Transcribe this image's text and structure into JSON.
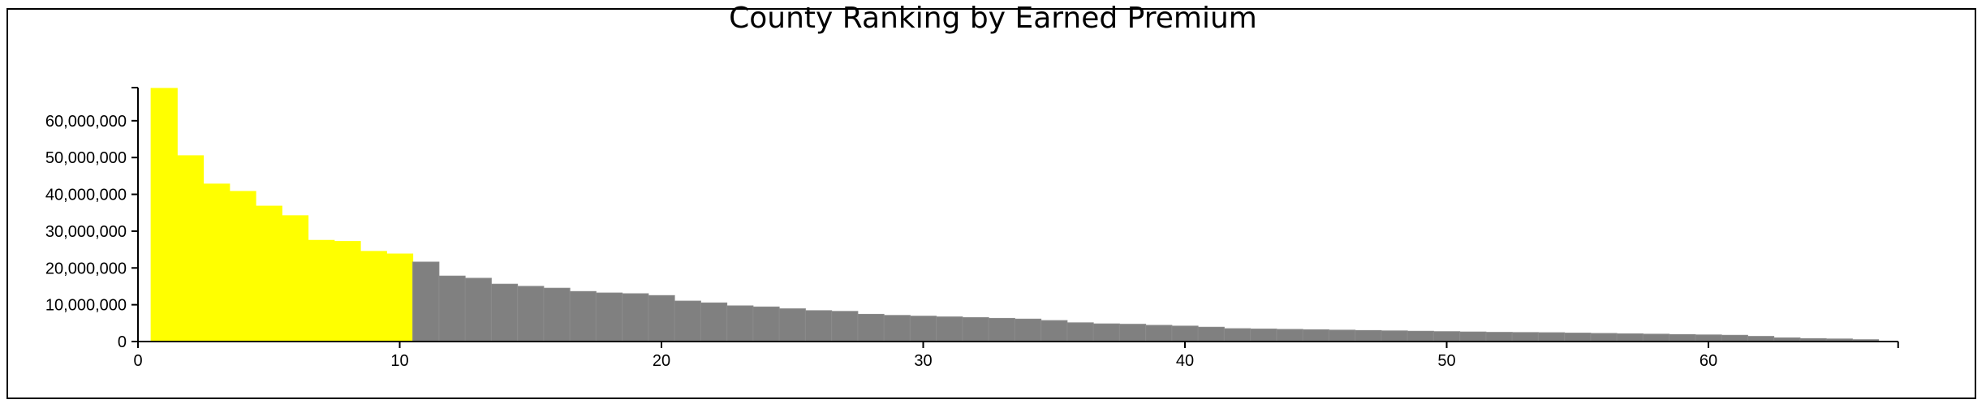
{
  "chart_data": {
    "type": "bar",
    "title": "County Ranking by Earned Premium",
    "xlabel": "",
    "ylabel": "",
    "xlim": [
      0,
      67
    ],
    "ylim": [
      0,
      69000000
    ],
    "x_ticks": [
      0,
      10,
      20,
      30,
      40,
      50,
      60
    ],
    "y_ticks": [
      0,
      10000000,
      20000000,
      30000000,
      40000000,
      50000000,
      60000000
    ],
    "y_tick_labels": [
      "0",
      "10,000,000",
      "20,000,000",
      "30,000,000",
      "40,000,000",
      "50,000,000",
      "60,000,000"
    ],
    "x_tick_labels": [
      "0",
      "10",
      "20",
      "30",
      "40",
      "50",
      "60"
    ],
    "grid": false,
    "highlight_count": 10,
    "colors": {
      "highlight": "#ffff00",
      "normal": "#808080"
    },
    "values": [
      68800000,
      50500000,
      42800000,
      40800000,
      36800000,
      34200000,
      27500000,
      27200000,
      24500000,
      23800000,
      21600000,
      17800000,
      17200000,
      15600000,
      15000000,
      14500000,
      13600000,
      13200000,
      13000000,
      12500000,
      11000000,
      10500000,
      9700000,
      9400000,
      8900000,
      8400000,
      8200000,
      7400000,
      7100000,
      6900000,
      6700000,
      6500000,
      6300000,
      6100000,
      5700000,
      5100000,
      4800000,
      4700000,
      4400000,
      4200000,
      3900000,
      3500000,
      3400000,
      3300000,
      3200000,
      3100000,
      3000000,
      2900000,
      2800000,
      2700000,
      2600000,
      2500000,
      2450000,
      2400000,
      2300000,
      2200000,
      2100000,
      2000000,
      1900000,
      1800000,
      1700000,
      1400000,
      1000000,
      800000,
      700000,
      500000
    ]
  }
}
